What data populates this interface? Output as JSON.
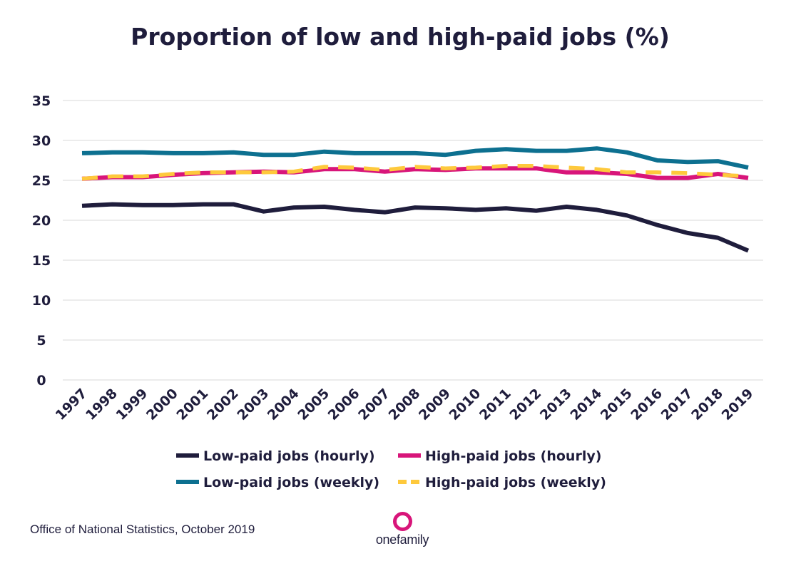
{
  "chart_data": {
    "type": "line",
    "title": "Proportion of low and high-paid jobs (%)",
    "xlabel": "",
    "ylabel": "",
    "ylim": [
      0,
      35
    ],
    "yticks": [
      0,
      5,
      10,
      15,
      20,
      25,
      30,
      35
    ],
    "grid": true,
    "legend_position": "bottom",
    "categories": [
      "1997",
      "1998",
      "1999",
      "2000",
      "2001",
      "2002",
      "2003",
      "2004",
      "2005",
      "2006",
      "2007",
      "2008",
      "2009",
      "2010",
      "2011",
      "2012",
      "2013",
      "2014",
      "2015",
      "2016",
      "2017",
      "2018",
      "2019"
    ],
    "series": [
      {
        "name": "Low-paid jobs (hourly)",
        "color": "#1f1d3c",
        "dashed": false,
        "values": [
          21.8,
          22.0,
          21.9,
          21.9,
          22.0,
          22.0,
          21.1,
          21.6,
          21.7,
          21.3,
          21.0,
          21.6,
          21.5,
          21.3,
          21.5,
          21.2,
          21.7,
          21.3,
          20.6,
          19.4,
          18.4,
          17.8,
          16.2
        ]
      },
      {
        "name": "High-paid jobs (hourly)",
        "color": "#d8157a",
        "dashed": false,
        "values": [
          25.2,
          25.4,
          25.4,
          25.7,
          25.9,
          26.0,
          26.1,
          26.0,
          26.4,
          26.4,
          26.1,
          26.4,
          26.3,
          26.5,
          26.5,
          26.5,
          26.0,
          26.0,
          25.8,
          25.3,
          25.3,
          25.8,
          25.3
        ]
      },
      {
        "name": "Low-paid jobs (weekly)",
        "color": "#0d7090",
        "dashed": false,
        "values": [
          28.4,
          28.5,
          28.5,
          28.4,
          28.4,
          28.5,
          28.2,
          28.2,
          28.6,
          28.4,
          28.4,
          28.4,
          28.2,
          28.7,
          28.9,
          28.7,
          28.7,
          29.0,
          28.5,
          27.5,
          27.3,
          27.4,
          26.6
        ]
      },
      {
        "name": "High-paid jobs (weekly)",
        "color": "#fec93c",
        "dashed": true,
        "values": [
          25.2,
          25.5,
          25.5,
          25.8,
          26.0,
          26.0,
          26.0,
          26.1,
          26.7,
          26.6,
          26.3,
          26.7,
          26.5,
          26.6,
          26.8,
          26.8,
          26.6,
          26.4,
          26.0,
          26.0,
          25.9,
          25.7,
          25.5
        ]
      }
    ]
  },
  "footer": {
    "source": "Office of National Statistics, October 2019",
    "logo_text": "onefamily",
    "logo_color": "#d8157a"
  }
}
